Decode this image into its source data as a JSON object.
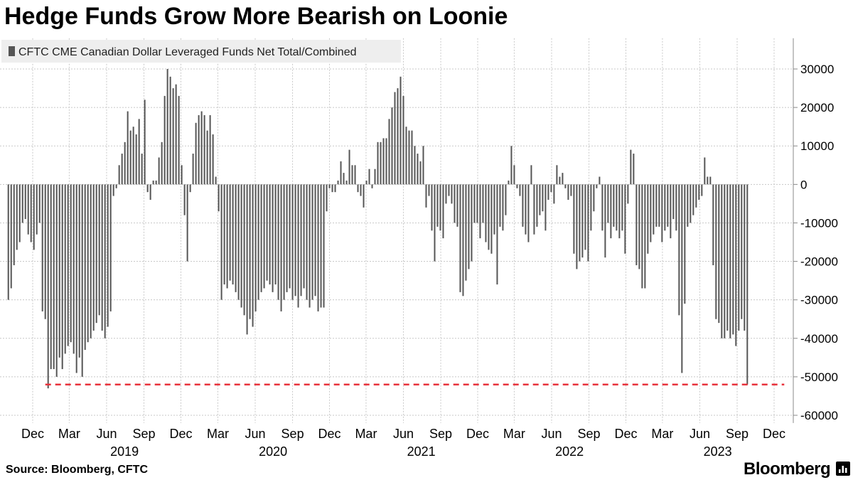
{
  "title": "Hedge Funds Grow More Bearish on Loonie",
  "source": "Source: Bloomberg, CFTC",
  "brand": "Bloomberg",
  "logo_icon": "bloomberg-terminal-icon",
  "colors": {
    "bars": "#555555",
    "reference_line": "#e8333d",
    "grid": "#c8c8c8",
    "legend_bg": "#eeeeee"
  },
  "chart_data": {
    "type": "bar",
    "legend": {
      "placement": "top-left",
      "entries": [
        "CFTC CME Canadian Dollar Leveraged Funds Net Total/Combined"
      ]
    },
    "grid": true,
    "ylim": [
      -62000,
      38000
    ],
    "y_ticks": [
      30000,
      20000,
      10000,
      0,
      -10000,
      -20000,
      -30000,
      -40000,
      -50000,
      -60000
    ],
    "y_tick_labels": [
      "30000",
      "20000",
      "10000",
      "0",
      "-10000",
      "-20000",
      "-30000",
      "-40000",
      "-50000",
      "-60000"
    ],
    "x_ticks": [
      {
        "label": "Dec",
        "date": "2018-12-01"
      },
      {
        "label": "Mar",
        "date": "2019-03-01"
      },
      {
        "label": "Jun",
        "date": "2019-06-01"
      },
      {
        "label": "Sep",
        "date": "2019-09-01"
      },
      {
        "label": "Dec",
        "date": "2019-12-01"
      },
      {
        "label": "Mar",
        "date": "2020-03-01"
      },
      {
        "label": "Jun",
        "date": "2020-06-01"
      },
      {
        "label": "Sep",
        "date": "2020-09-01"
      },
      {
        "label": "Dec",
        "date": "2020-12-01"
      },
      {
        "label": "Mar",
        "date": "2021-03-01"
      },
      {
        "label": "Jun",
        "date": "2021-06-01"
      },
      {
        "label": "Sep",
        "date": "2021-09-01"
      },
      {
        "label": "Dec",
        "date": "2021-12-01"
      },
      {
        "label": "Mar",
        "date": "2022-03-01"
      },
      {
        "label": "Jun",
        "date": "2022-06-01"
      },
      {
        "label": "Sep",
        "date": "2022-09-01"
      },
      {
        "label": "Dec",
        "date": "2022-12-01"
      },
      {
        "label": "Mar",
        "date": "2023-03-01"
      },
      {
        "label": "Jun",
        "date": "2023-06-01"
      },
      {
        "label": "Sep",
        "date": "2023-09-01"
      },
      {
        "label": "Dec",
        "date": "2023-12-01"
      }
    ],
    "year_labels": [
      {
        "label": "2019",
        "date": "2019-07-15"
      },
      {
        "label": "2020",
        "date": "2020-07-15"
      },
      {
        "label": "2021",
        "date": "2021-07-15"
      },
      {
        "label": "2022",
        "date": "2022-07-15"
      },
      {
        "label": "2023",
        "date": "2023-07-15"
      }
    ],
    "reference_line": {
      "value": -52000,
      "from": "2019-01-01",
      "to": "2023-12-26",
      "style": "dashed"
    },
    "series": [
      {
        "start_date": "2018-10-02",
        "interval_days": 7,
        "values": [
          -30000,
          -27000,
          -21000,
          -17000,
          -15000,
          -10000,
          -9000,
          -13000,
          -15000,
          -17000,
          -13000,
          -10000,
          -33000,
          -35000,
          -53000,
          -48000,
          -48000,
          -50000,
          -45000,
          -48000,
          -44000,
          -42000,
          -41000,
          -44000,
          -49000,
          -45000,
          -50000,
          -43000,
          -41000,
          -40000,
          -38000,
          -36000,
          -34000,
          -38000,
          -40000,
          -37000,
          -33000,
          -3000,
          -1000,
          5000,
          8000,
          11000,
          19000,
          14000,
          15000,
          13000,
          17000,
          8000,
          22000,
          -2000,
          -4000,
          1000,
          1000,
          7000,
          11000,
          23000,
          30000,
          28000,
          25000,
          26000,
          23000,
          5000,
          -8000,
          -20000,
          -2000,
          8000,
          16000,
          18000,
          19000,
          18000,
          14000,
          18000,
          13000,
          2000,
          -7000,
          -30000,
          -26000,
          -27000,
          -25000,
          -26000,
          -28000,
          -30000,
          -32000,
          -34000,
          -39000,
          -35000,
          -37000,
          -33000,
          -30000,
          -28000,
          -27000,
          -25000,
          -26000,
          -28000,
          -26000,
          -30000,
          -33000,
          -30000,
          -28000,
          -27000,
          -30000,
          -29000,
          -32000,
          -29000,
          -27000,
          -30000,
          -32000,
          -30000,
          -29000,
          -33000,
          -32000,
          -32000,
          -7000,
          -1000,
          -2000,
          -2000,
          1000,
          6000,
          3000,
          1000,
          9000,
          5000,
          5000,
          -2000,
          -3000,
          -6000,
          1000,
          4000,
          -1000,
          4000,
          11000,
          11000,
          12000,
          12000,
          17000,
          20000,
          24000,
          25000,
          28000,
          23000,
          15000,
          14000,
          14000,
          10000,
          8000,
          6000,
          10000,
          -6000,
          -3000,
          -12000,
          -20000,
          -11000,
          -12000,
          -14000,
          -5000,
          -3000,
          -5000,
          -10000,
          -11000,
          -28000,
          -29000,
          -25000,
          -22000,
          -20000,
          -10000,
          -10000,
          -14000,
          -10000,
          -15000,
          -17000,
          -18000,
          -13000,
          -26000,
          -11000,
          -12000,
          -8000,
          1000,
          10000,
          5000,
          -1000,
          -3000,
          -11000,
          -13000,
          -15000,
          5000,
          -13000,
          -11000,
          -8000,
          -7000,
          -12000,
          -4000,
          -2000,
          -5000,
          5000,
          2000,
          3000,
          -1000,
          -4000,
          -3000,
          -18000,
          -22000,
          -20000,
          -19000,
          -17000,
          -20000,
          -12000,
          -7000,
          -1000,
          2000,
          -12000,
          -19000,
          -10000,
          -14000,
          -11000,
          -12000,
          -14000,
          -12000,
          -18000,
          -5000,
          9000,
          8000,
          -21000,
          -22000,
          -27000,
          -27000,
          -18000,
          -15000,
          -13000,
          -11000,
          -11000,
          -15000,
          -12000,
          -11000,
          -14000,
          -9000,
          -12000,
          -34000,
          -49000,
          -31000,
          -11000,
          -10000,
          -8000,
          -6000,
          -4000,
          -3000,
          7000,
          2000,
          2000,
          -21000,
          -35000,
          -36000,
          -40000,
          -40000,
          -38000,
          -40000,
          -39000,
          -42000,
          -38000,
          -35000,
          -38000,
          -52000
        ]
      }
    ]
  }
}
